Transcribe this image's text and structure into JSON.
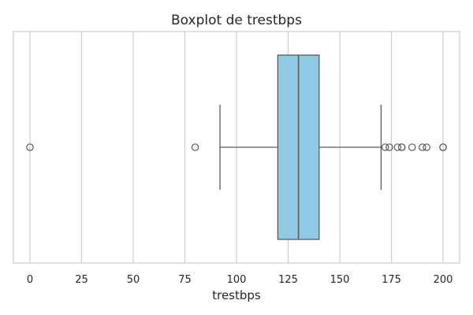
{
  "chart_data": {
    "type": "boxplot",
    "orientation": "horizontal",
    "title": "Boxplot de trestbps",
    "xlabel": "trestbps",
    "ylabel": "",
    "xlim": [
      -8,
      208
    ],
    "xticks": [
      0,
      25,
      50,
      75,
      100,
      125,
      150,
      175,
      200
    ],
    "grid": true,
    "box": {
      "whisker_low": 92,
      "q1": 120,
      "median": 130,
      "q3": 140,
      "whisker_high": 170,
      "outliers": [
        0,
        80,
        172,
        174,
        178,
        180,
        180,
        185,
        190,
        192,
        200,
        200
      ]
    },
    "colors": {
      "box_fill": "#8ecae6",
      "line": "#5a5a5a",
      "grid": "#d0d0d0",
      "spine": "#cccccc",
      "text": "#262626"
    }
  }
}
